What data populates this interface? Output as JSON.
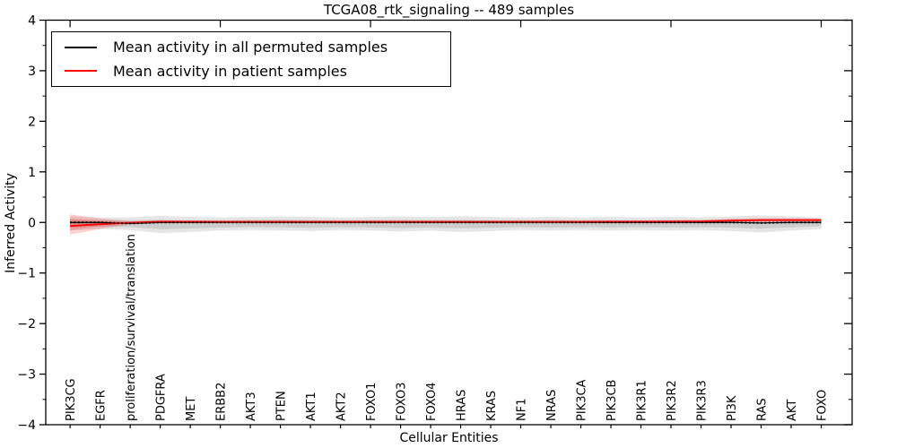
{
  "figure": {
    "title": "TCGA08_rtk_signaling -- 489 samples",
    "xlabel": "Cellular Entities",
    "ylabel": "Inferred Activity"
  },
  "legend": {
    "position": "upper left",
    "items": [
      {
        "label": "Mean activity in all permuted samples",
        "color": "#000000"
      },
      {
        "label": "Mean activity in patient samples",
        "color": "#ff0000"
      }
    ]
  },
  "chart_data": {
    "type": "line",
    "title": "TCGA08_rtk_signaling -- 489 samples",
    "xlabel": "Cellular Entities",
    "ylabel": "Inferred Activity",
    "grid": false,
    "legend_position": "upper left",
    "x_categories": [
      "PIK3CG",
      "EGFR",
      "proliferation/survival/translation",
      "PDGFRA",
      "MET",
      "ERBB2",
      "AKT3",
      "PTEN",
      "AKT1",
      "AKT2",
      "FOXO1",
      "FOXO3",
      "FOXO4",
      "HRAS",
      "KRAS",
      "NF1",
      "NRAS",
      "PIK3CA",
      "PIK3CB",
      "PIK3R1",
      "PIK3R2",
      "PIK3R3",
      "PI3K",
      "RAS",
      "AKT",
      "FOXO"
    ],
    "x_range": [
      -0.81,
      26.03
    ],
    "y_range": [
      -4,
      4
    ],
    "y_major_ticks": [
      -4,
      -3,
      -2,
      -1,
      0,
      1,
      2,
      3,
      4
    ],
    "y_minor_step": 0.5,
    "top_tick_every": 5,
    "series": [
      {
        "name": "Mean activity in all permuted samples",
        "color": "#000000",
        "style": "solid_with_dotted_overlay",
        "line_width": 1.2,
        "values": [
          0.0,
          0.0,
          -0.02,
          0.0,
          0.0,
          0.0,
          0.0,
          0.0,
          0.0,
          0.0,
          0.0,
          0.0,
          0.0,
          0.0,
          0.0,
          0.0,
          0.0,
          0.0,
          0.0,
          0.0,
          0.0,
          0.0,
          0.0,
          -0.01,
          0.0,
          0.0
        ]
      },
      {
        "name": "Mean activity in patient samples",
        "color": "#ff0000",
        "style": "solid",
        "line_width": 1.8,
        "values": [
          -0.07,
          -0.035,
          -0.005,
          0.015,
          0.015,
          0.012,
          0.012,
          0.012,
          0.012,
          0.012,
          0.012,
          0.012,
          0.012,
          0.012,
          0.012,
          0.012,
          0.012,
          0.012,
          0.015,
          0.015,
          0.018,
          0.02,
          0.035,
          0.045,
          0.045,
          0.045
        ]
      }
    ],
    "bands": [
      {
        "name": "permuted-samples-spread",
        "color": "rgba(0,0,0,0.10)",
        "hi": [
          0.12,
          0.1,
          0.1,
          0.13,
          0.11,
          0.1,
          0.11,
          0.12,
          0.11,
          0.1,
          0.11,
          0.12,
          0.11,
          0.12,
          0.11,
          0.1,
          0.11,
          0.1,
          0.11,
          0.1,
          0.11,
          0.1,
          0.12,
          0.14,
          0.12,
          0.1
        ],
        "lo": [
          -0.16,
          -0.13,
          -0.15,
          -0.21,
          -0.19,
          -0.16,
          -0.15,
          -0.16,
          -0.17,
          -0.15,
          -0.16,
          -0.18,
          -0.16,
          -0.19,
          -0.17,
          -0.15,
          -0.16,
          -0.15,
          -0.16,
          -0.15,
          -0.16,
          -0.15,
          -0.17,
          -0.2,
          -0.16,
          -0.13
        ]
      },
      {
        "name": "patient-samples-spread",
        "color": "rgba(255,0,0,0.18)",
        "hi": [
          0.16,
          0.08,
          0.025,
          0.045,
          0.04,
          0.035,
          0.035,
          0.035,
          0.035,
          0.035,
          0.035,
          0.035,
          0.035,
          0.035,
          0.035,
          0.035,
          0.035,
          0.035,
          0.04,
          0.04,
          0.045,
          0.05,
          0.075,
          0.085,
          0.085,
          0.08
        ],
        "lo": [
          -0.24,
          -0.13,
          -0.035,
          -0.015,
          -0.01,
          -0.008,
          -0.008,
          -0.008,
          -0.008,
          -0.008,
          -0.008,
          -0.008,
          -0.008,
          -0.008,
          -0.008,
          -0.008,
          -0.008,
          -0.008,
          -0.005,
          -0.005,
          0.0,
          0.0,
          0.01,
          0.015,
          0.02,
          0.015
        ]
      }
    ],
    "inner_band_factor": 0.55
  }
}
